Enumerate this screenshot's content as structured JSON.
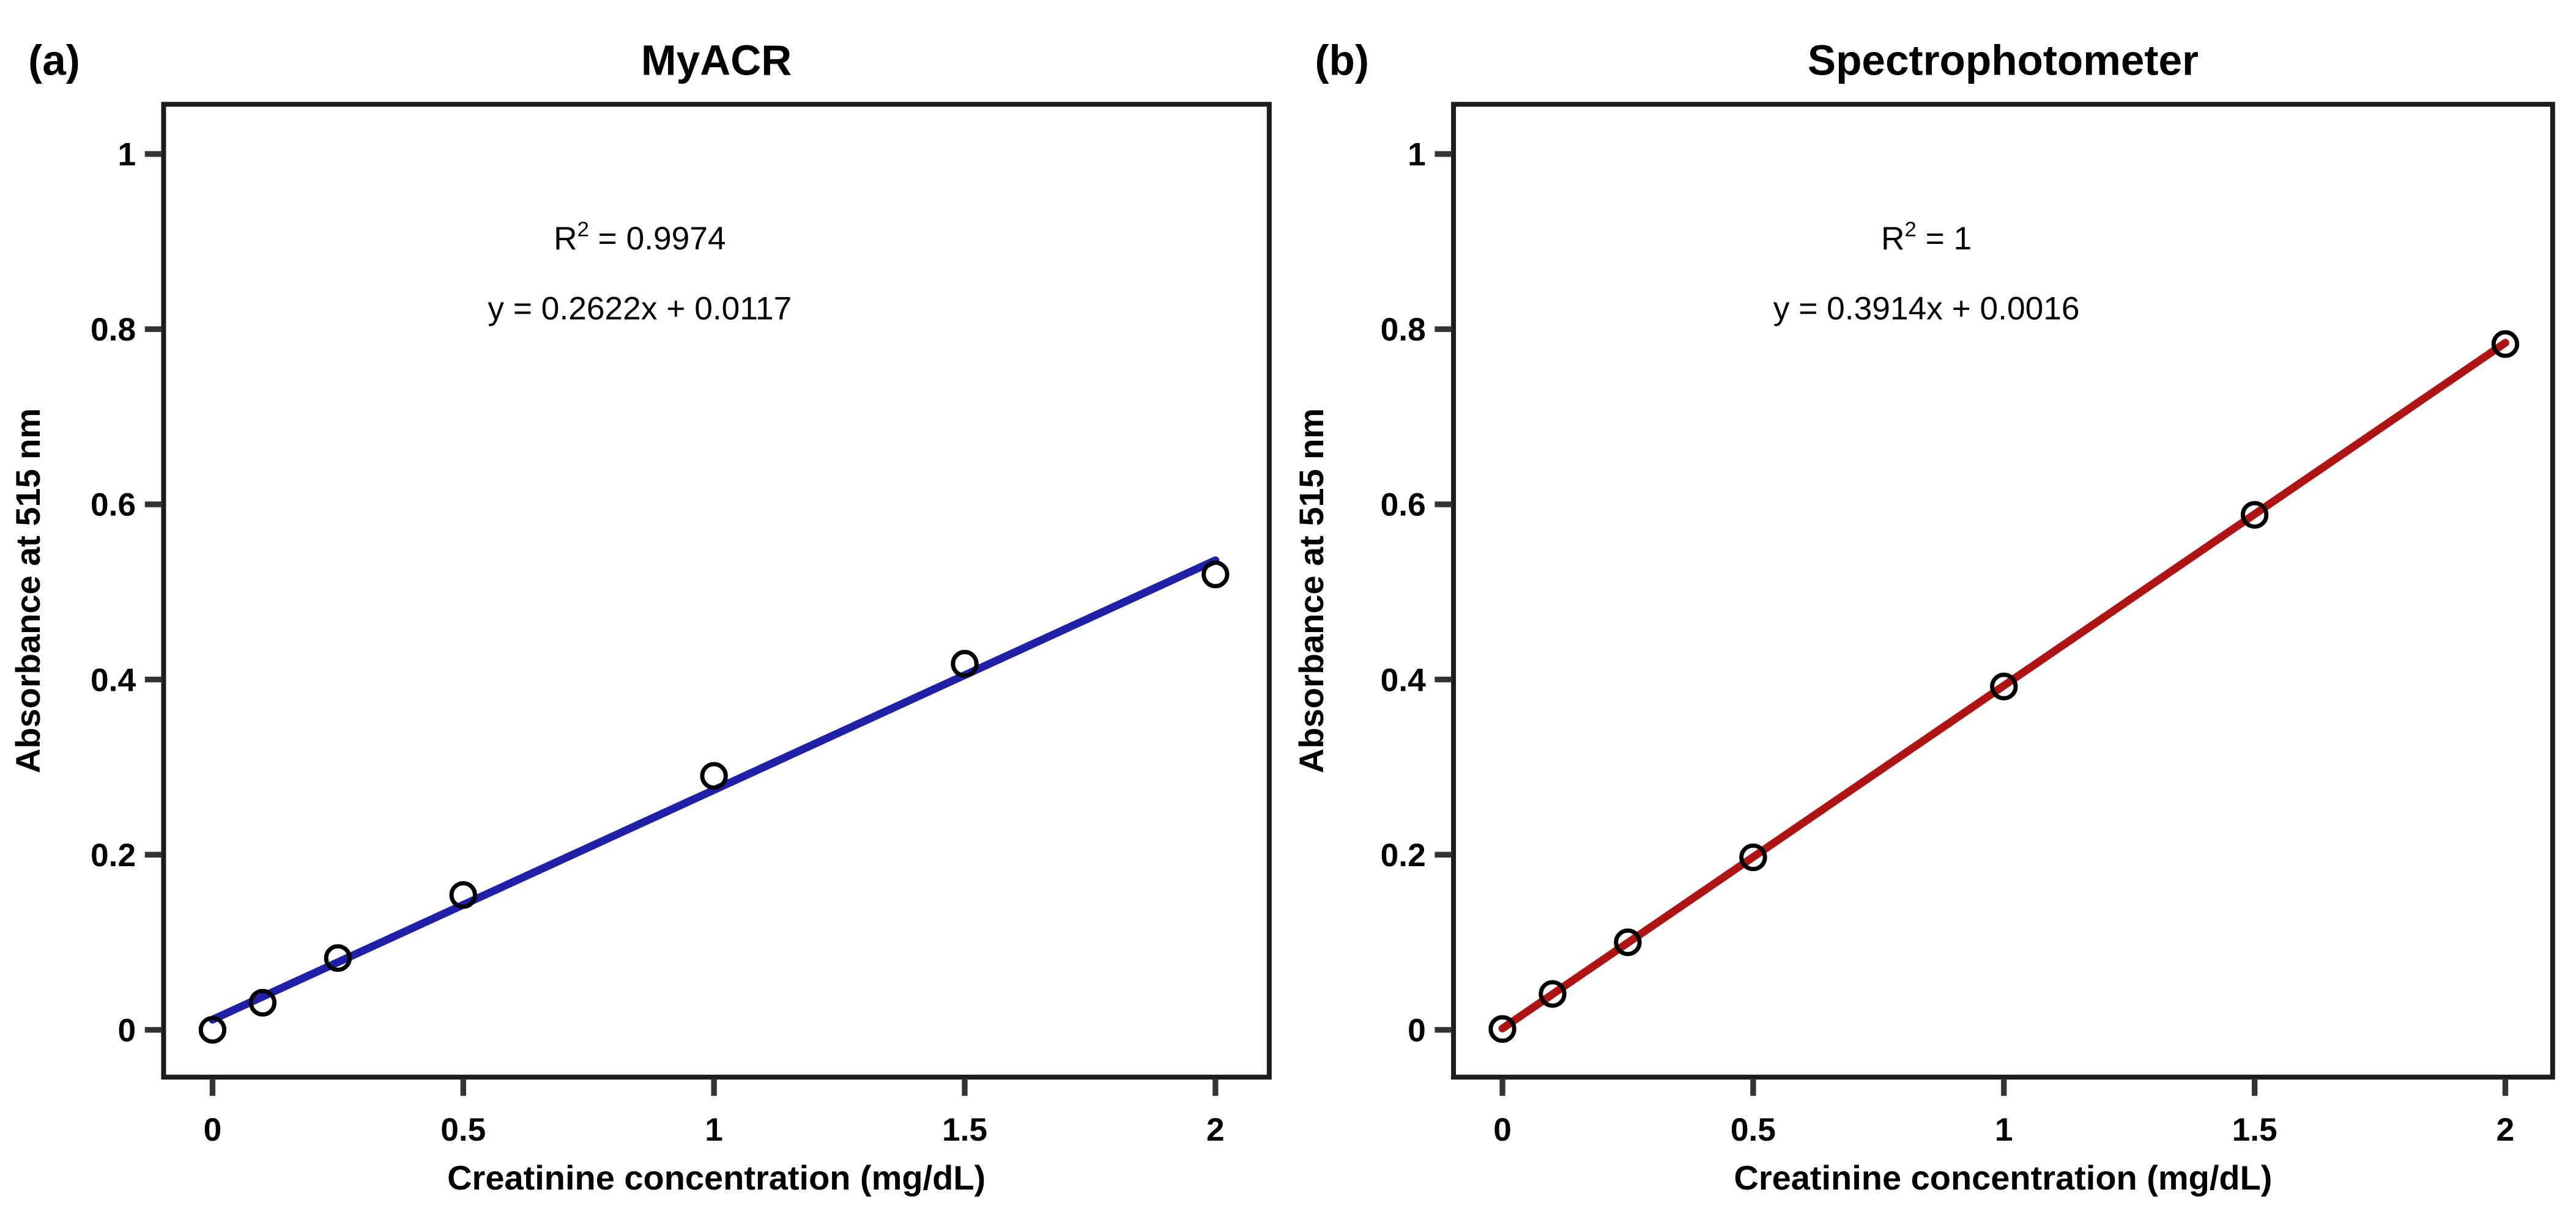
{
  "figure": {
    "background": "#ffffff",
    "border_color": "#1c1c1c",
    "tick_color": "#333333",
    "marker_color": "#000000"
  },
  "chart_data": [
    {
      "type": "scatter",
      "panel_label": "(a)",
      "title": "MyACR",
      "xlabel": "Creatinine concentration (mg/dL)",
      "ylabel": "Absorbance at 515 nm",
      "x_tick_labels": [
        "0",
        "0.5",
        "1",
        "1.5",
        "2"
      ],
      "x_tick_values": [
        0,
        0.5,
        1,
        1.5,
        2
      ],
      "y_tick_labels": [
        "0",
        "0.2",
        "0.4",
        "0.6",
        "0.8",
        "1"
      ],
      "y_tick_values": [
        0,
        0.2,
        0.4,
        0.6,
        0.8,
        1
      ],
      "xlim": [
        -0.1,
        2.1
      ],
      "ylim": [
        -0.055,
        1.06
      ],
      "points_x": [
        0,
        0.1,
        0.25,
        0.5,
        1,
        1.5,
        2
      ],
      "points_y": [
        0.0,
        0.031,
        0.082,
        0.154,
        0.29,
        0.418,
        0.52
      ],
      "marker": "open-circle",
      "grid": false,
      "legend": false,
      "fit": {
        "slope": 0.2622,
        "intercept": 0.0117,
        "x_start": 0,
        "x_end": 2,
        "r_squared": 0.9974
      },
      "line_color": "#1f1fa8",
      "annotation_r2": {
        "base": "R",
        "sup": "2",
        "rest": " = 0.9974"
      },
      "annotation_equation": "y = 0.2622x + 0.0117"
    },
    {
      "type": "scatter",
      "panel_label": "(b)",
      "title": "Spectrophotometer",
      "xlabel": "Creatinine concentration (mg/dL)",
      "ylabel": "Absorbance at 515 nm",
      "x_tick_labels": [
        "0",
        "0.5",
        "1",
        "1.5",
        "2"
      ],
      "x_tick_values": [
        0,
        0.5,
        1,
        1.5,
        2
      ],
      "y_tick_labels": [
        "0",
        "0.2",
        "0.4",
        "0.6",
        "0.8",
        "1"
      ],
      "y_tick_values": [
        0,
        0.2,
        0.4,
        0.6,
        0.8,
        1
      ],
      "xlim": [
        -0.1,
        2.1
      ],
      "ylim": [
        -0.055,
        1.06
      ],
      "points_x": [
        0,
        0.1,
        0.25,
        0.5,
        1,
        1.5,
        2
      ],
      "points_y": [
        0.001,
        0.041,
        0.1,
        0.197,
        0.392,
        0.588,
        0.783
      ],
      "marker": "open-circle",
      "grid": false,
      "legend": false,
      "fit": {
        "slope": 0.3914,
        "intercept": 0.0016,
        "x_start": 0,
        "x_end": 2,
        "r_squared": 1
      },
      "line_color": "#ae1414",
      "annotation_r2": {
        "base": "R",
        "sup": "2",
        "rest": " = 1"
      },
      "annotation_equation": "y = 0.3914x + 0.0016"
    }
  ]
}
